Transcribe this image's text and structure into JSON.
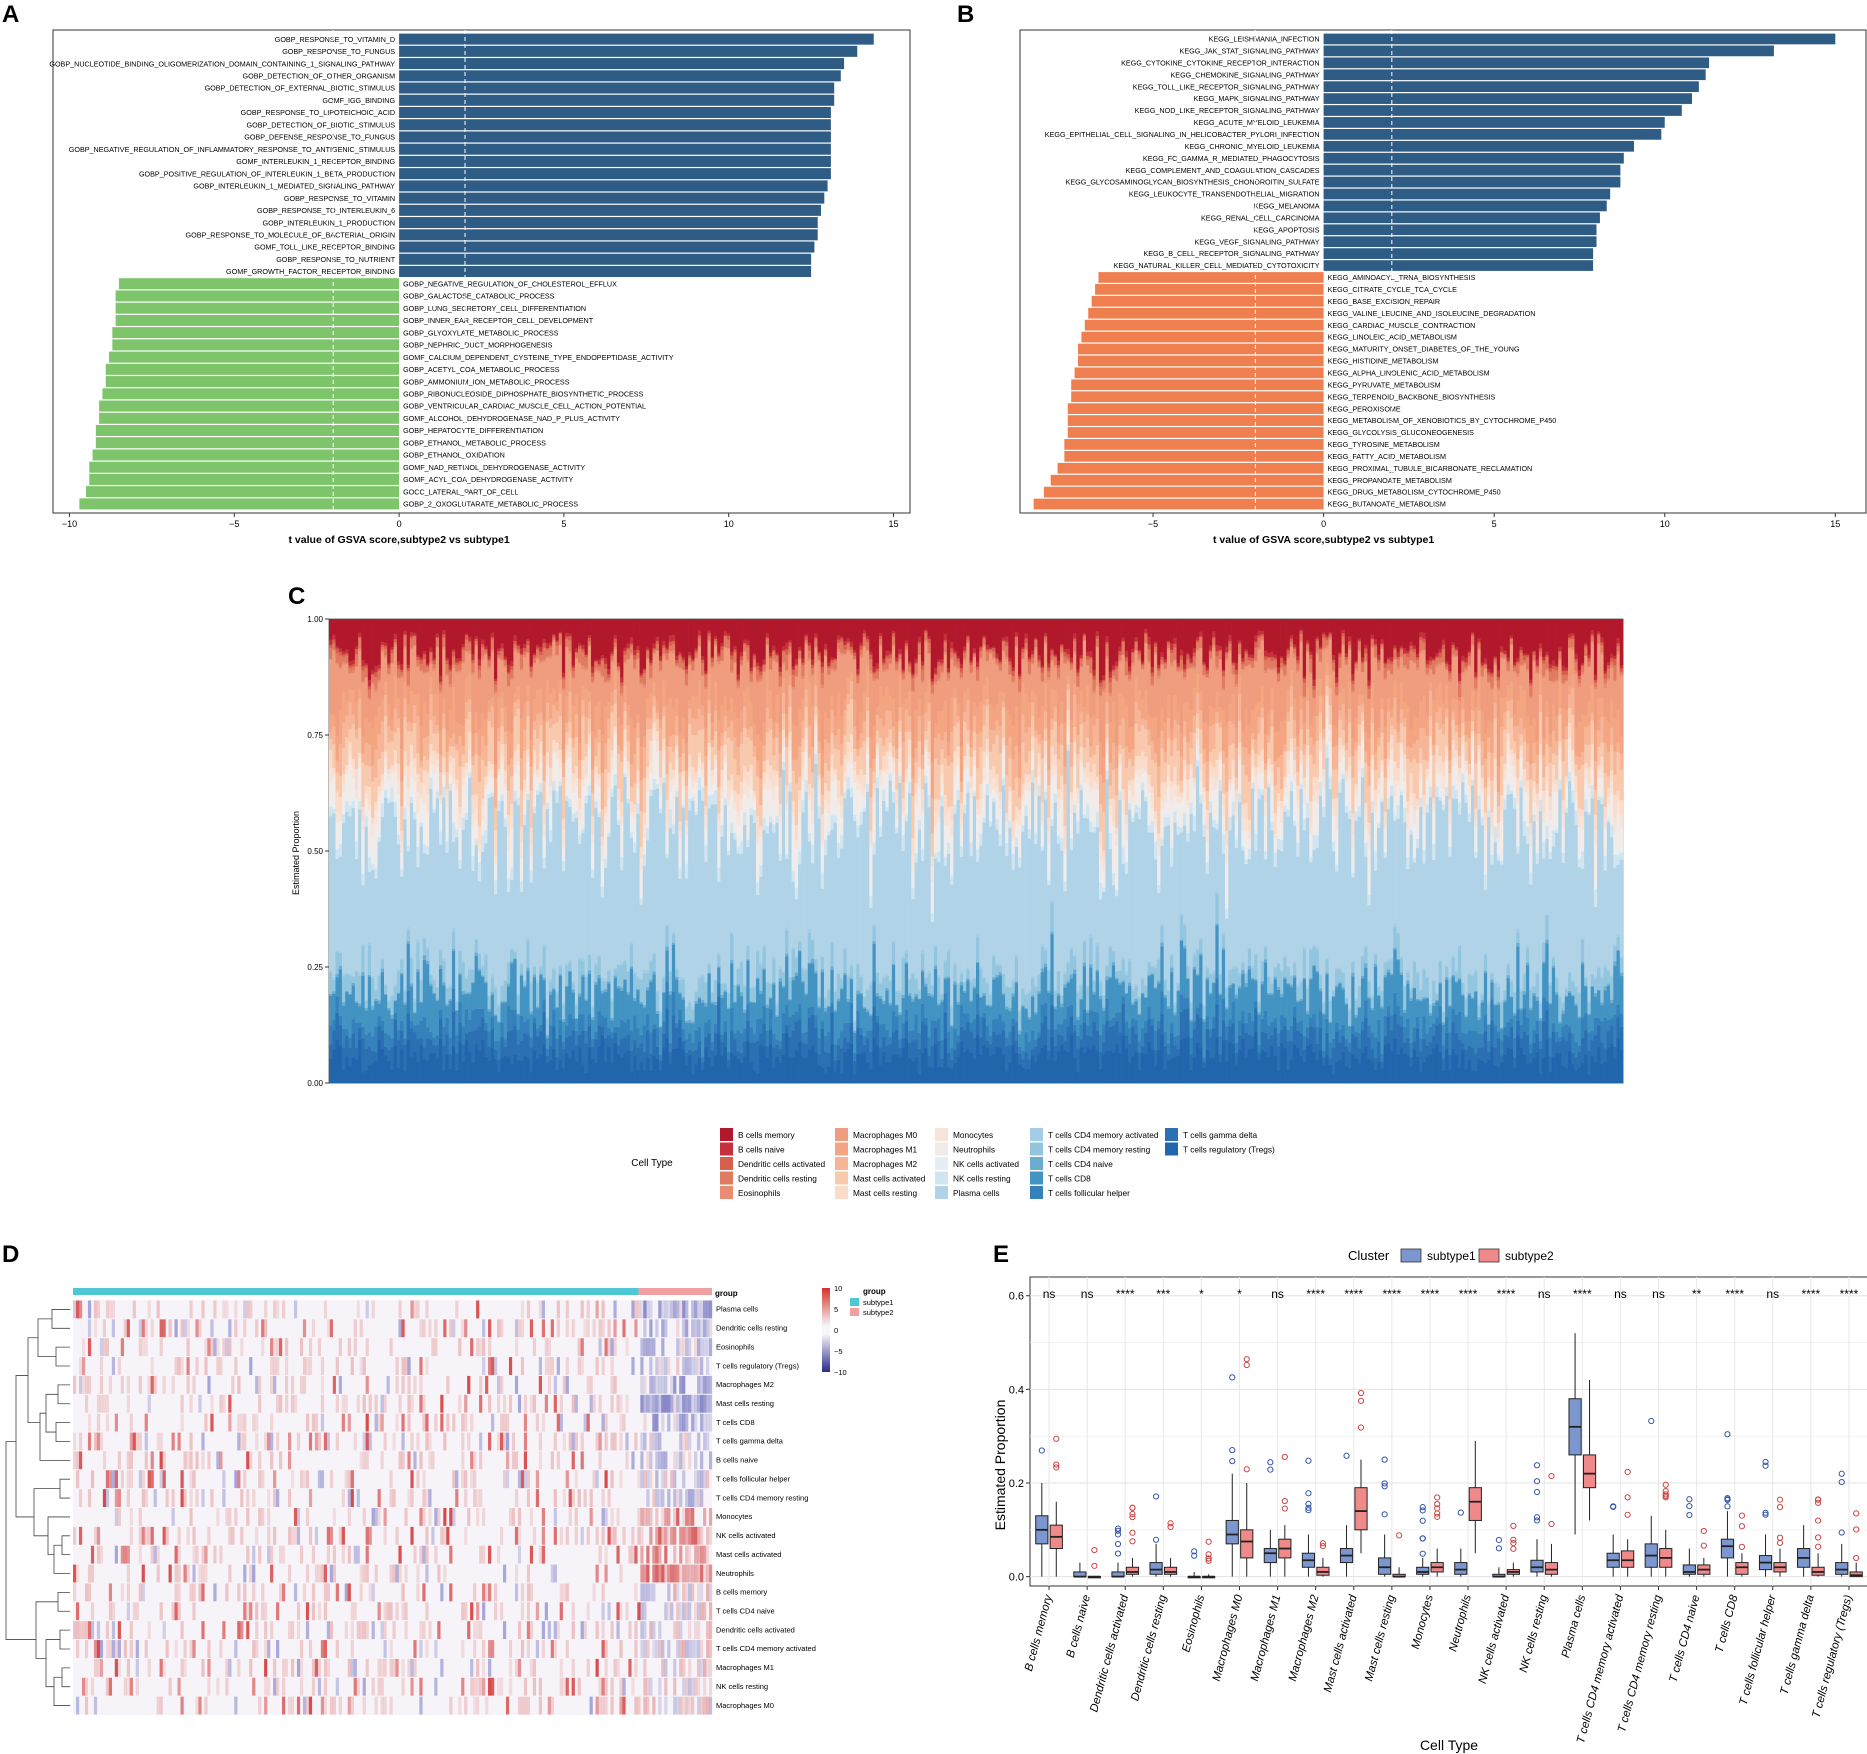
{
  "panel_letters": [
    "A",
    "B",
    "C",
    "D",
    "E"
  ],
  "colors": {
    "gobp_up": "#2F5C85",
    "gobp_down": "#7DC46B",
    "kegg_up": "#2F5C85",
    "kegg_down": "#F07F4F",
    "subtype1": "#7C97CF",
    "subtype2": "#F08A8A",
    "group_subtype1": "#4FC8D6",
    "group_subtype2": "#F0A0A0"
  },
  "chart_data": [
    {
      "panel": "A",
      "type": "bar",
      "orientation": "horizontal",
      "xlabel": "t value of GSVA score,subtype2 vs subtype1",
      "xlim": [
        -10.5,
        15.5
      ],
      "xticks": [
        -10,
        -5,
        0,
        5,
        10,
        15
      ],
      "threshold_lines": [
        -2,
        2
      ],
      "up_terms": [
        "GOBP_RESPONSE_TO_VITAMIN_D",
        "GOBP_RESPONSE_TO_FUNGUS",
        "GOBP_NUCLEOTIDE_BINDING_OLIGOMERIZATION_DOMAIN_CONTAINING_1_SIGNALING_PATHWAY",
        "GOBP_DETECTION_OF_OTHER_ORGANISM",
        "GOBP_DETECTION_OF_EXTERNAL_BIOTIC_STIMULUS",
        "GOMF_IGG_BINDING",
        "GOBP_RESPONSE_TO_LIPOTEICHOIC_ACID",
        "GOBP_DETECTION_OF_BIOTIC_STIMULUS",
        "GOBP_DEFENSE_RESPONSE_TO_FUNGUS",
        "GOBP_NEGATIVE_REGULATION_OF_INFLAMMATORY_RESPONSE_TO_ANTIGENIC_STIMULUS",
        "GOMF_INTERLEUKIN_1_RECEPTOR_BINDING",
        "GOBP_POSITIVE_REGULATION_OF_INTERLEUKIN_1_BETA_PRODUCTION",
        "GOBP_INTERLEUKIN_1_MEDIATED_SIGNALING_PATHWAY",
        "GOBP_RESPONSE_TO_VITAMIN",
        "GOBP_RESPONSE_TO_INTERLEUKIN_6",
        "GOBP_INTERLEUKIN_1_PRODUCTION",
        "GOBP_RESPONSE_TO_MOLECULE_OF_BACTERIAL_ORIGIN",
        "GOMF_TOLL_LIKE_RECEPTOR_BINDING",
        "GOBP_RESPONSE_TO_NUTRIENT",
        "GOMF_GROWTH_FACTOR_RECEPTOR_BINDING"
      ],
      "up_values": [
        14.4,
        13.9,
        13.5,
        13.4,
        13.2,
        13.2,
        13.1,
        13.1,
        13.1,
        13.1,
        13.1,
        13.1,
        13.0,
        12.9,
        12.8,
        12.7,
        12.7,
        12.6,
        12.5,
        12.5
      ],
      "down_terms": [
        "GOBP_NEGATIVE_REGULATION_OF_CHOLESTEROL_EFFLUX",
        "GOBP_GALACTOSE_CATABOLIC_PROCESS",
        "GOBP_LUNG_SECRETORY_CELL_DIFFERENTIATION",
        "GOBP_INNER_EAR_RECEPTOR_CELL_DEVELOPMENT",
        "GOBP_GLYOXYLATE_METABOLIC_PROCESS",
        "GOBP_NEPHRIC_DUCT_MORPHOGENESIS",
        "GOMF_CALCIUM_DEPENDENT_CYSTEINE_TYPE_ENDOPEPTIDASE_ACTIVITY",
        "GOBP_ACETYL_COA_METABOLIC_PROCESS",
        "GOBP_AMMONIUM_ION_METABOLIC_PROCESS",
        "GOBP_RIBONUCLEOSIDE_DIPHOSPHATE_BIOSYNTHETIC_PROCESS",
        "GOBP_VENTRICULAR_CARDIAC_MUSCLE_CELL_ACTION_POTENTIAL",
        "GOMF_ALCOHOL_DEHYDROGENASE_NAD_P_PLUS_ACTIVITY",
        "GOBP_HEPATOCYTE_DIFFERENTIATION",
        "GOBP_ETHANOL_METABOLIC_PROCESS",
        "GOBP_ETHANOL_OXIDATION",
        "GOMF_NAD_RETINOL_DEHYDROGENASE_ACTIVITY",
        "GOMF_ACYL_COA_DEHYDROGENASE_ACTIVITY",
        "GOCC_LATERAL_PART_OF_CELL",
        "GOBP_2_OXOGLUTARATE_METABOLIC_PROCESS"
      ],
      "down_values": [
        -8.5,
        -8.6,
        -8.6,
        -8.6,
        -8.7,
        -8.7,
        -8.8,
        -8.9,
        -8.9,
        -9.0,
        -9.1,
        -9.1,
        -9.2,
        -9.2,
        -9.3,
        -9.4,
        -9.4,
        -9.5,
        -9.7
      ]
    },
    {
      "panel": "B",
      "type": "bar",
      "orientation": "horizontal",
      "xlabel": "t value of GSVA score,subtype2 vs subtype1",
      "xlim": [
        -8.9,
        15.9
      ],
      "xticks": [
        -5,
        0,
        5,
        10,
        15
      ],
      "threshold_lines": [
        -2,
        2
      ],
      "up_terms": [
        "KEGG_LEISHMANIA_INFECTION",
        "KEGG_JAK_STAT_SIGNALING_PATHWAY",
        "KEGG_CYTOKINE_CYTOKINE_RECEPTOR_INTERACTION",
        "KEGG_CHEMOKINE_SIGNALING_PATHWAY",
        "KEGG_TOLL_LIKE_RECEPTOR_SIGNALING_PATHWAY",
        "KEGG_MAPK_SIGNALING_PATHWAY",
        "KEGG_NOD_LIKE_RECEPTOR_SIGNALING_PATHWAY",
        "KEGG_ACUTE_MYELOID_LEUKEMIA",
        "KEGG_EPITHELIAL_CELL_SIGNALING_IN_HELICOBACTER_PYLORI_INFECTION",
        "KEGG_CHRONIC_MYELOID_LEUKEMIA",
        "KEGG_FC_GAMMA_R_MEDIATED_PHAGOCYTOSIS",
        "KEGG_COMPLEMENT_AND_COAGULATION_CASCADES",
        "KEGG_GLYCOSAMINOGLYCAN_BIOSYNTHESIS_CHONDROITIN_SULFATE",
        "KEGG_LEUKOCYTE_TRANSENDOTHELIAL_MIGRATION",
        "KEGG_MELANOMA",
        "KEGG_RENAL_CELL_CARCINOMA",
        "KEGG_APOPTOSIS",
        "KEGG_VEGF_SIGNALING_PATHWAY",
        "KEGG_B_CELL_RECEPTOR_SIGNALING_PATHWAY",
        "KEGG_NATURAL_KILLER_CELL_MEDIATED_CYTOTOXICITY"
      ],
      "up_values": [
        15.0,
        13.2,
        11.3,
        11.2,
        11.0,
        10.8,
        10.5,
        10.0,
        9.9,
        9.1,
        8.8,
        8.7,
        8.7,
        8.4,
        8.3,
        8.1,
        8.0,
        8.0,
        7.9,
        7.9
      ],
      "down_terms": [
        "KEGG_AMINOACYL_TRNA_BIOSYNTHESIS",
        "KEGG_CITRATE_CYCLE_TCA_CYCLE",
        "KEGG_BASE_EXCISION_REPAIR",
        "KEGG_VALINE_LEUCINE_AND_ISOLEUCINE_DEGRADATION",
        "KEGG_CARDIAC_MUSCLE_CONTRACTION",
        "KEGG_LINOLEIC_ACID_METABOLISM",
        "KEGG_MATURITY_ONSET_DIABETES_OF_THE_YOUNG",
        "KEGG_HISTIDINE_METABOLISM",
        "KEGG_ALPHA_LINOLENIC_ACID_METABOLISM",
        "KEGG_PYRUVATE_METABOLISM",
        "KEGG_TERPENOID_BACKBONE_BIOSYNTHESIS",
        "KEGG_PEROXISOME",
        "KEGG_METABOLISM_OF_XENOBIOTICS_BY_CYTOCHROME_P450",
        "KEGG_GLYCOLYSIS_GLUCONEOGENESIS",
        "KEGG_TYROSINE_METABOLISM",
        "KEGG_FATTY_ACID_METABOLISM",
        "KEGG_PROXIMAL_TUBULE_BICARBONATE_RECLAMATION",
        "KEGG_PROPANOATE_METABOLISM",
        "KEGG_DRUG_METABOLISM_CYTOCHROME_P450",
        "KEGG_BUTANOATE_METABOLISM"
      ],
      "down_values": [
        -6.6,
        -6.7,
        -6.8,
        -6.9,
        -7.0,
        -7.1,
        -7.2,
        -7.2,
        -7.3,
        -7.4,
        -7.4,
        -7.5,
        -7.5,
        -7.5,
        -7.6,
        -7.6,
        -7.8,
        -8.0,
        -8.2,
        -8.5
      ]
    },
    {
      "panel": "C",
      "type": "stacked-bar",
      "ylabel": "Estimated Proportion",
      "ylim": [
        0,
        1
      ],
      "yticks": [
        "0.00",
        "0.25",
        "0.50",
        "0.75",
        "1.00"
      ],
      "n_samples": 400,
      "legend_title": "Cell Type",
      "cell_types": [
        "B cells memory",
        "B cells naive",
        "Dendritic cells activated",
        "Dendritic cells resting",
        "Eosinophils",
        "Macrophages M0",
        "Macrophages M1",
        "Macrophages M2",
        "Mast cells activated",
        "Mast cells resting",
        "Monocytes",
        "Neutrophils",
        "NK cells activated",
        "NK cells resting",
        "Plasma cells",
        "T cells CD4 memory activated",
        "T cells CD4 memory resting",
        "T cells CD4 naive",
        "T cells CD8",
        "T cells follicular helper",
        "T cells gamma delta",
        "T cells regulatory (Tregs)"
      ],
      "cell_colors": [
        "#B2182B",
        "#C5303B",
        "#D6604D",
        "#E07A60",
        "#E98C72",
        "#F09C7E",
        "#F4A582",
        "#F6B596",
        "#F9C9AE",
        "#FBDBC9",
        "#F7E3D8",
        "#F1ECEA",
        "#E4EEF4",
        "#D1E5F0",
        "#B0D3E8",
        "#A3CDE4",
        "#92C5DE",
        "#6BACD1",
        "#4393C3",
        "#3581BC",
        "#2A70B2",
        "#2166AC"
      ],
      "mean_proportions": [
        0.07,
        0.008,
        0.006,
        0.016,
        0.004,
        0.085,
        0.05,
        0.04,
        0.055,
        0.025,
        0.02,
        0.05,
        0.006,
        0.02,
        0.31,
        0.004,
        0.035,
        0.005,
        0.07,
        0.03,
        0.04,
        0.057
      ]
    },
    {
      "panel": "D",
      "type": "heatmap",
      "group_label": "group",
      "groups": [
        "subtype1",
        "subtype2"
      ],
      "group_fraction_subtype1": 0.885,
      "rows": [
        "Plasma cells",
        "Dendritic cells resting",
        "Eosinophils",
        "T cells regulatory (Tregs)",
        "Macrophages M2",
        "Mast cells resting",
        "T cells CD8",
        "T cells gamma delta",
        "B cells naive",
        "T cells follicular helper",
        "T cells CD4 memory resting",
        "Monocytes",
        "NK cells activated",
        "Mast cells activated",
        "Neutrophils",
        "B cells memory",
        "T cells CD4 naive",
        "Dendritic cells activated",
        "T cells CD4 memory activated",
        "Macrophages M1",
        "NK cells resting",
        "Macrophages M0"
      ],
      "scale_ticks": [
        "10",
        "5",
        "0",
        "−5",
        "−10"
      ],
      "scale_range": [
        -10,
        10
      ],
      "subtype2_bias": [
        -0.6,
        -0.3,
        -0.3,
        -0.2,
        -0.5,
        -0.7,
        -0.5,
        -0.2,
        -0.2,
        -0.1,
        -0.2,
        0.7,
        0.8,
        0.6,
        0.8,
        0,
        0,
        0,
        0,
        0,
        0,
        0
      ]
    },
    {
      "panel": "E",
      "type": "boxplot",
      "legend_title": "Cluster",
      "series": [
        "subtype1",
        "subtype2"
      ],
      "xlabel": "Cell Type",
      "ylabel": "Estimated Proportion",
      "ylim": [
        -0.02,
        0.64
      ],
      "yticks": [
        0.0,
        0.2,
        0.4,
        0.6
      ],
      "ytick_labels": [
        "0.0",
        "0.2",
        "0.4",
        "0.6"
      ],
      "categories": [
        "B cells memory",
        "B cells naive",
        "Dendritic cells activated",
        "Dendritic cells resting",
        "Eosinophils",
        "Macrophages M0",
        "Macrophages M1",
        "Macrophages M2",
        "Mast cells activated",
        "Mast cells resting",
        "Monocytes",
        "Neutrophils",
        "NK cells activated",
        "NK cells resting",
        "Plasma cells",
        "T cells CD4 memory activated",
        "T cells CD4 memory resting",
        "T cells CD4 naive",
        "T cells CD8",
        "T cells follicular helper",
        "T cells gamma delta",
        "T cells regulatory (Tregs)"
      ],
      "significance": [
        "ns",
        "ns",
        "****",
        "***",
        "*",
        "*",
        "ns",
        "****",
        "****",
        "****",
        "****",
        "****",
        "****",
        "ns",
        "****",
        "ns",
        "ns",
        "**",
        "****",
        "ns",
        "****",
        "****"
      ],
      "subtype1": [
        [
          0,
          0.07,
          0.1,
          0.13,
          0.2
        ],
        [
          0,
          0,
          0,
          0.01,
          0.03
        ],
        [
          0,
          0,
          0,
          0.01,
          0.03
        ],
        [
          0,
          0.005,
          0.015,
          0.03,
          0.07
        ],
        [
          0,
          0,
          0,
          0,
          0.01
        ],
        [
          0,
          0.07,
          0.09,
          0.12,
          0.22
        ],
        [
          0,
          0.03,
          0.05,
          0.06,
          0.1
        ],
        [
          0,
          0.02,
          0.035,
          0.05,
          0.09
        ],
        [
          0,
          0.03,
          0.045,
          0.06,
          0.11
        ],
        [
          0,
          0.005,
          0.02,
          0.04,
          0.09
        ],
        [
          0,
          0.005,
          0.01,
          0.02,
          0.04
        ],
        [
          0,
          0.005,
          0.015,
          0.03,
          0.06
        ],
        [
          0,
          0,
          0,
          0.005,
          0.02
        ],
        [
          0,
          0.01,
          0.02,
          0.035,
          0.08
        ],
        [
          0.09,
          0.26,
          0.32,
          0.38,
          0.52
        ],
        [
          0,
          0.02,
          0.035,
          0.05,
          0.09
        ],
        [
          0,
          0.02,
          0.045,
          0.07,
          0.13
        ],
        [
          0,
          0.005,
          0.01,
          0.025,
          0.06
        ],
        [
          0,
          0.04,
          0.065,
          0.08,
          0.14
        ],
        [
          0,
          0.015,
          0.03,
          0.045,
          0.09
        ],
        [
          0,
          0.02,
          0.04,
          0.06,
          0.11
        ],
        [
          0,
          0.005,
          0.015,
          0.03,
          0.07
        ]
      ],
      "subtype2": [
        [
          0,
          0.06,
          0.085,
          0.11,
          0.16
        ],
        [
          0,
          0,
          0,
          0,
          0
        ],
        [
          0,
          0.005,
          0.01,
          0.02,
          0.04
        ],
        [
          0,
          0.005,
          0.01,
          0.02,
          0.04
        ],
        [
          0,
          0,
          0,
          0,
          0.005
        ],
        [
          0,
          0.04,
          0.075,
          0.1,
          0.2
        ],
        [
          0,
          0.04,
          0.06,
          0.08,
          0.11
        ],
        [
          0,
          0.003,
          0.01,
          0.02,
          0.04
        ],
        [
          0.05,
          0.1,
          0.14,
          0.19,
          0.25
        ],
        [
          0,
          0,
          0,
          0.005,
          0.02
        ],
        [
          0,
          0.01,
          0.02,
          0.03,
          0.06
        ],
        [
          0.05,
          0.12,
          0.16,
          0.19,
          0.29
        ],
        [
          0,
          0.005,
          0.01,
          0.015,
          0.03
        ],
        [
          0,
          0.005,
          0.015,
          0.03,
          0.07
        ],
        [
          0.12,
          0.19,
          0.22,
          0.26,
          0.42
        ],
        [
          0,
          0.02,
          0.035,
          0.055,
          0.08
        ],
        [
          0,
          0.02,
          0.04,
          0.06,
          0.1
        ],
        [
          0,
          0.005,
          0.015,
          0.025,
          0.04
        ],
        [
          0,
          0.005,
          0.02,
          0.03,
          0.05
        ],
        [
          0,
          0.01,
          0.02,
          0.03,
          0.06
        ],
        [
          0,
          0.003,
          0.01,
          0.02,
          0.05
        ],
        [
          0,
          0,
          0.003,
          0.01,
          0.03
        ]
      ]
    }
  ]
}
